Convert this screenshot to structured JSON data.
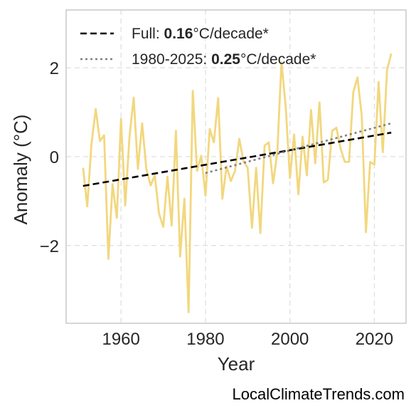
{
  "watermark": "LocalClimateTrends.com",
  "colors": {
    "series": "#f2d77e",
    "full_trend": "#000000",
    "recent_trend": "#808080",
    "grid": "#dddddd",
    "frame": "#c8c8c8"
  },
  "chart_data": {
    "type": "line",
    "xlabel": "Year",
    "ylabel": "Anomaly (°C)",
    "xlim": [
      1947,
      2027.5
    ],
    "ylim": [
      -3.75,
      3.3
    ],
    "xticks": [
      1960,
      1980,
      2000,
      2020
    ],
    "yticks": [
      2,
      0,
      -2
    ],
    "ytick_labels": [
      "2",
      "0",
      "−2"
    ],
    "grid": true,
    "legend_position": "top-left",
    "legend": [
      {
        "prefix": "Full: ",
        "bold": "0.16",
        "suffix": "°C/decade*",
        "style": "dashed",
        "color": "#000000"
      },
      {
        "prefix": "1980-2025: ",
        "bold": "0.25",
        "suffix": "°C/decade*",
        "style": "dotted",
        "color": "#808080"
      }
    ],
    "series": [
      {
        "x": [
          1951,
          1952,
          1953,
          1954,
          1955,
          1956,
          1957,
          1958,
          1959,
          1960,
          1961,
          1962,
          1963,
          1964,
          1965,
          1966,
          1967,
          1968,
          1969,
          1970,
          1971,
          1972,
          1973,
          1974,
          1975,
          1976,
          1977,
          1978,
          1979,
          1980,
          1981,
          1982,
          1983,
          1984,
          1985,
          1986,
          1987,
          1988,
          1989,
          1990,
          1991,
          1992,
          1993,
          1994,
          1995,
          1996,
          1997,
          1998,
          1999,
          2000,
          2001,
          2002,
          2003,
          2004,
          2005,
          2006,
          2007,
          2008,
          2009,
          2010,
          2011,
          2012,
          2013,
          2014,
          2015,
          2016,
          2017,
          2018,
          2019,
          2020,
          2021,
          2022,
          2023,
          2024
        ],
        "y": [
          -0.25,
          -1.12,
          0.28,
          1.07,
          0.35,
          0.48,
          -2.3,
          -0.62,
          -1.38,
          0.85,
          -1.1,
          0.45,
          1.33,
          -0.28,
          0.75,
          -0.28,
          -0.65,
          -0.42,
          -1.28,
          -1.58,
          -0.45,
          -1.55,
          0.58,
          -2.25,
          -0.95,
          -3.5,
          1.48,
          -0.32,
          0.02,
          -0.88,
          0.62,
          0.32,
          1.32,
          -0.95,
          -0.22,
          -0.55,
          -0.32,
          0.4,
          -0.1,
          -0.25,
          -1.6,
          -0.25,
          -1.72,
          0.25,
          0.32,
          -0.6,
          0.08,
          2.12,
          1.12,
          -0.48,
          0.5,
          -0.85,
          0.45,
          -0.42,
          1.05,
          -0.15,
          1.22,
          -0.58,
          -0.52,
          0.58,
          0.65,
          0.18,
          -0.12,
          -0.12,
          1.45,
          1.78,
          0.92,
          -1.7,
          -0.12,
          -0.18,
          1.68,
          0.1,
          1.95,
          2.32
        ]
      }
    ],
    "trend_lines": [
      {
        "name": "Full",
        "x": [
          1951,
          2024
        ],
        "y": [
          -0.66,
          0.54
        ]
      },
      {
        "name": "1980-2025",
        "x": [
          1980,
          2024
        ],
        "y": [
          -0.37,
          0.75
        ]
      }
    ]
  }
}
